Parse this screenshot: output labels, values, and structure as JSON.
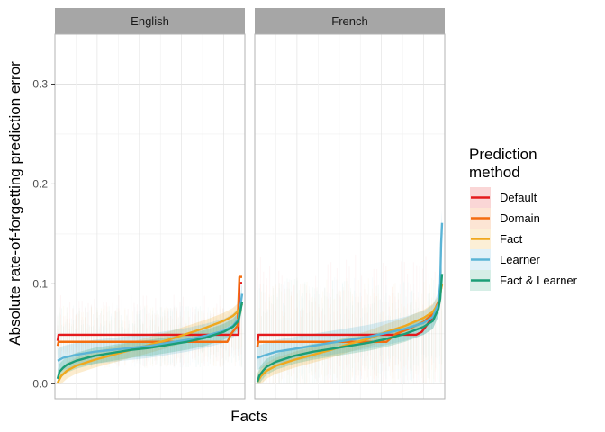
{
  "chart_data": {
    "type": "line",
    "title": "",
    "xlabel": "Facts",
    "ylabel": "Absolute rate-of-forgetting prediction error",
    "ylim": [
      -0.015,
      0.35
    ],
    "yticks": [
      "0.0",
      "0.1",
      "0.2",
      "0.3"
    ],
    "ytick_values": [
      0,
      0.1,
      0.2,
      0.3
    ],
    "grid": true,
    "legend": {
      "title": "Prediction\nmethod",
      "title_lines": [
        "Prediction",
        "method"
      ],
      "placement": "right"
    },
    "panels": [
      {
        "name": "English",
        "series": [
          {
            "name": "Default",
            "color": "#e41a1c",
            "band": 0.0,
            "points": [
              [
                0.0,
                0.043
              ],
              [
                0.005,
                0.049
              ],
              [
                0.98,
                0.049
              ],
              [
                0.985,
                0.101
              ],
              [
                1.0,
                0.101
              ]
            ]
          },
          {
            "name": "Domain",
            "color": "#f46d0f",
            "band": 0.0,
            "points": [
              [
                0.0,
                0.038
              ],
              [
                0.005,
                0.042
              ],
              [
                0.92,
                0.042
              ],
              [
                0.94,
                0.05
              ],
              [
                0.975,
                0.058
              ],
              [
                0.985,
                0.107
              ],
              [
                1.0,
                0.107
              ]
            ]
          },
          {
            "name": "Fact",
            "color": "#f0a81e",
            "band": 0.008,
            "points": [
              [
                0.0,
                0.001
              ],
              [
                0.02,
                0.008
              ],
              [
                0.05,
                0.013
              ],
              [
                0.1,
                0.018
              ],
              [
                0.2,
                0.024
              ],
              [
                0.3,
                0.029
              ],
              [
                0.4,
                0.034
              ],
              [
                0.5,
                0.039
              ],
              [
                0.6,
                0.044
              ],
              [
                0.7,
                0.05
              ],
              [
                0.8,
                0.056
              ],
              [
                0.9,
                0.063
              ],
              [
                0.95,
                0.068
              ],
              [
                0.98,
                0.073
              ],
              [
                1.0,
                0.08
              ]
            ]
          },
          {
            "name": "Learner",
            "color": "#5ab4d6",
            "band": 0.012,
            "points": [
              [
                0.0,
                0.023
              ],
              [
                0.03,
                0.026
              ],
              [
                0.1,
                0.029
              ],
              [
                0.2,
                0.032
              ],
              [
                0.3,
                0.034
              ],
              [
                0.4,
                0.036
              ],
              [
                0.5,
                0.038
              ],
              [
                0.6,
                0.041
              ],
              [
                0.7,
                0.044
              ],
              [
                0.8,
                0.048
              ],
              [
                0.9,
                0.053
              ],
              [
                0.95,
                0.058
              ],
              [
                0.98,
                0.065
              ],
              [
                1.0,
                0.09
              ]
            ]
          },
          {
            "name": "Fact & Learner",
            "color": "#1b9e77",
            "band": 0.008,
            "points": [
              [
                0.0,
                0.005
              ],
              [
                0.01,
                0.012
              ],
              [
                0.03,
                0.016
              ],
              [
                0.05,
                0.019
              ],
              [
                0.1,
                0.023
              ],
              [
                0.2,
                0.028
              ],
              [
                0.3,
                0.031
              ],
              [
                0.4,
                0.034
              ],
              [
                0.5,
                0.036
              ],
              [
                0.6,
                0.039
              ],
              [
                0.7,
                0.042
              ],
              [
                0.8,
                0.046
              ],
              [
                0.9,
                0.052
              ],
              [
                0.95,
                0.057
              ],
              [
                0.98,
                0.063
              ],
              [
                1.0,
                0.082
              ]
            ]
          }
        ]
      },
      {
        "name": "French",
        "series": [
          {
            "name": "Default",
            "color": "#e41a1c",
            "band": 0.0,
            "points": [
              [
                0.0,
                0.037
              ],
              [
                0.005,
                0.049
              ],
              [
                0.86,
                0.049
              ],
              [
                0.89,
                0.052
              ],
              [
                0.93,
                0.062
              ],
              [
                0.96,
                0.07
              ],
              [
                0.98,
                0.08
              ],
              [
                0.995,
                0.1
              ],
              [
                1.0,
                0.1
              ]
            ]
          },
          {
            "name": "Domain",
            "color": "#f46d0f",
            "band": 0.0,
            "points": [
              [
                0.0,
                0.037
              ],
              [
                0.005,
                0.042
              ],
              [
                0.7,
                0.042
              ],
              [
                0.75,
                0.05
              ],
              [
                0.82,
                0.055
              ],
              [
                0.9,
                0.062
              ],
              [
                0.95,
                0.07
              ],
              [
                0.98,
                0.082
              ],
              [
                1.0,
                0.1
              ]
            ]
          },
          {
            "name": "Fact",
            "color": "#f0a81e",
            "band": 0.008,
            "points": [
              [
                0.0,
                0.002
              ],
              [
                0.02,
                0.008
              ],
              [
                0.05,
                0.013
              ],
              [
                0.1,
                0.018
              ],
              [
                0.2,
                0.024
              ],
              [
                0.3,
                0.029
              ],
              [
                0.4,
                0.034
              ],
              [
                0.5,
                0.04
              ],
              [
                0.6,
                0.045
              ],
              [
                0.7,
                0.052
              ],
              [
                0.8,
                0.058
              ],
              [
                0.9,
                0.066
              ],
              [
                0.95,
                0.072
              ],
              [
                0.98,
                0.08
              ],
              [
                1.0,
                0.1
              ]
            ]
          },
          {
            "name": "Learner",
            "color": "#5ab4d6",
            "band": 0.012,
            "points": [
              [
                0.0,
                0.026
              ],
              [
                0.03,
                0.028
              ],
              [
                0.1,
                0.032
              ],
              [
                0.2,
                0.035
              ],
              [
                0.3,
                0.038
              ],
              [
                0.4,
                0.041
              ],
              [
                0.5,
                0.044
              ],
              [
                0.6,
                0.047
              ],
              [
                0.7,
                0.051
              ],
              [
                0.8,
                0.055
              ],
              [
                0.9,
                0.061
              ],
              [
                0.95,
                0.067
              ],
              [
                0.98,
                0.08
              ],
              [
                0.99,
                0.1
              ],
              [
                0.995,
                0.14
              ],
              [
                1.0,
                0.161
              ]
            ]
          },
          {
            "name": "Fact & Learner",
            "color": "#1b9e77",
            "band": 0.008,
            "points": [
              [
                0.0,
                0.002
              ],
              [
                0.01,
                0.008
              ],
              [
                0.03,
                0.013
              ],
              [
                0.05,
                0.017
              ],
              [
                0.1,
                0.022
              ],
              [
                0.2,
                0.028
              ],
              [
                0.3,
                0.032
              ],
              [
                0.4,
                0.035
              ],
              [
                0.5,
                0.038
              ],
              [
                0.6,
                0.041
              ],
              [
                0.7,
                0.045
              ],
              [
                0.8,
                0.05
              ],
              [
                0.9,
                0.057
              ],
              [
                0.95,
                0.063
              ],
              [
                0.98,
                0.075
              ],
              [
                0.99,
                0.085
              ],
              [
                1.0,
                0.11
              ]
            ]
          }
        ]
      }
    ]
  }
}
